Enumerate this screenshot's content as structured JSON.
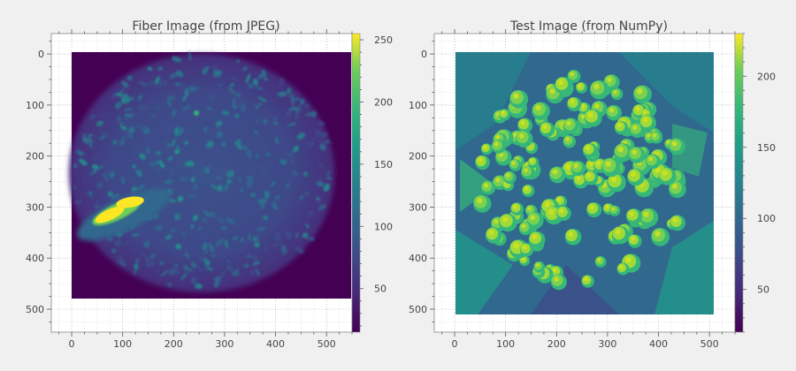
{
  "chart_data": [
    {
      "type": "heatmap",
      "title": "Fiber Image (from JPEG)",
      "image_shape": [
        480,
        480
      ],
      "xlim": [
        -40,
        550
      ],
      "ylim": [
        545,
        -40
      ],
      "xticks": [
        0,
        100,
        200,
        300,
        400,
        500
      ],
      "yticks": [
        0,
        100,
        200,
        300,
        400,
        500
      ],
      "colormap": "viridis",
      "colorbar_range": [
        15,
        255
      ],
      "colorbar_ticks": [
        50,
        100,
        150,
        200,
        250
      ],
      "grid": true,
      "content": "blurry fiber bundle cross-section with a bright saturated spot near x≈100, y≈300"
    },
    {
      "type": "heatmap",
      "title": "Test Image (from NumPy)",
      "image_shape": [
        512,
        512
      ],
      "xlim": [
        -40,
        550
      ],
      "ylim": [
        545,
        -40
      ],
      "xticks": [
        0,
        100,
        200,
        300,
        400,
        500
      ],
      "yticks": [
        0,
        100,
        200,
        300,
        400,
        500
      ],
      "colormap": "viridis",
      "colorbar_range": [
        20,
        230
      ],
      "colorbar_ticks": [
        50,
        100,
        150,
        200
      ],
      "grid": true,
      "content": "photograph of a cluster of round flower buds with leaves"
    }
  ]
}
